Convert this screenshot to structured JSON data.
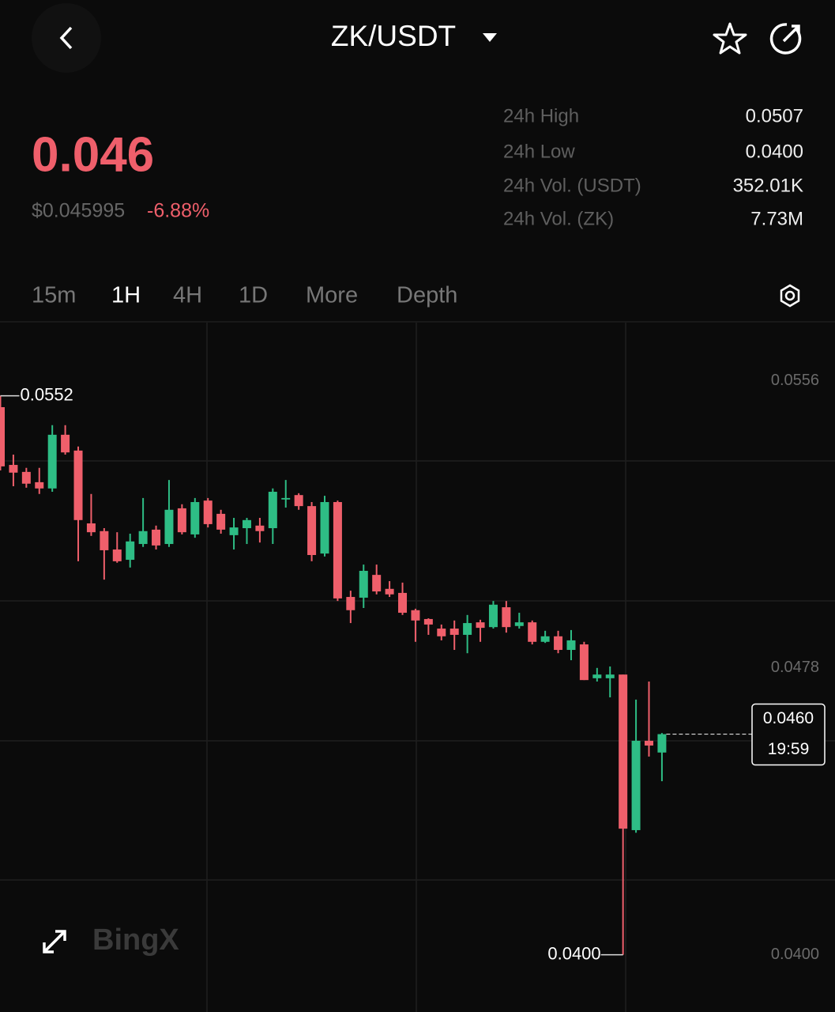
{
  "header": {
    "pair": "ZK/USDT"
  },
  "price": {
    "last": "0.046",
    "usd": "$0.045995",
    "change": "-6.88%"
  },
  "stats": [
    {
      "label": "24h High",
      "value": "0.0507"
    },
    {
      "label": "24h Low",
      "value": "0.0400"
    },
    {
      "label": "24h Vol. (USDT)",
      "value": "352.01K"
    },
    {
      "label": "24h Vol. (ZK)",
      "value": "7.73M"
    }
  ],
  "tabs": [
    "15m",
    "1H",
    "4H",
    "1D",
    "More",
    "Depth"
  ],
  "active_tab": "1H",
  "logo": "BingX",
  "chart_data": {
    "type": "candlestick",
    "up_color": "#2ebd85",
    "down_color": "#ef5f6b",
    "ylim": [
      0.03909,
      0.05719
    ],
    "yticks": [
      0.0556,
      0.0478,
      {
        "value": 0.04,
        "label": "0.0400"
      }
    ],
    "open": [
      0.05489,
      0.05332,
      0.05313,
      0.05285,
      0.05268,
      0.05414,
      0.05371,
      0.05173,
      0.05152,
      0.05102,
      0.05074,
      0.05117,
      0.05156,
      0.05117,
      0.05214,
      0.05143,
      0.05235,
      0.05199,
      0.05141,
      0.0516,
      0.05167,
      0.0516,
      0.05238,
      0.0525,
      0.0522,
      0.05091,
      0.05231,
      0.04973,
      0.04971,
      0.05033,
      0.04995,
      0.04984,
      0.04937,
      0.04913,
      0.04887,
      0.04887,
      0.0487,
      0.04904,
      0.04891,
      0.04945,
      0.04894,
      0.04904,
      0.04851,
      0.04866,
      0.04829,
      0.04844,
      0.04752,
      0.04752,
      0.04762,
      0.04339,
      0.04582,
      0.0455
    ],
    "high": [
      0.0552,
      0.0536,
      0.05324,
      0.05324,
      0.0544,
      0.0544,
      0.05382,
      0.05253,
      0.0516,
      0.05149,
      0.05145,
      0.05242,
      0.05167,
      0.05291,
      0.05225,
      0.05242,
      0.05242,
      0.0521,
      0.05188,
      0.05188,
      0.05188,
      0.05268,
      0.05291,
      0.05255,
      0.05231,
      0.05248,
      0.05235,
      0.0499,
      0.05061,
      0.05061,
      0.05016,
      0.05012,
      0.04941,
      0.04915,
      0.04898,
      0.04909,
      0.04924,
      0.04911,
      0.04962,
      0.04962,
      0.0493,
      0.04909,
      0.04881,
      0.04881,
      0.04883,
      0.04851,
      0.0478,
      0.04784,
      0.04762,
      0.04694,
      0.04743,
      0.04603
    ],
    "low": [
      0.05317,
      0.05274,
      0.0527,
      0.05253,
      0.05259,
      0.0536,
      0.0507,
      0.05139,
      0.0502,
      0.05066,
      0.05053,
      0.05109,
      0.05102,
      0.05109,
      0.05143,
      0.05134,
      0.05162,
      0.05145,
      0.05102,
      0.05117,
      0.05121,
      0.05117,
      0.05216,
      0.0521,
      0.0507,
      0.05083,
      0.04962,
      0.04902,
      0.04943,
      0.0498,
      0.04973,
      0.04924,
      0.04851,
      0.0487,
      0.04855,
      0.04829,
      0.0482,
      0.04851,
      0.04887,
      0.04876,
      0.04887,
      0.04844,
      0.04848,
      0.0482,
      0.04801,
      0.04747,
      0.04743,
      0.047,
      0.04,
      0.04332,
      0.04539,
      0.04472
    ],
    "close": [
      0.05328,
      0.05311,
      0.05281,
      0.05268,
      0.05414,
      0.05366,
      0.05182,
      0.05149,
      0.051,
      0.0507,
      0.05124,
      0.05152,
      0.05113,
      0.0521,
      0.05149,
      0.05231,
      0.05171,
      0.05156,
      0.05162,
      0.05182,
      0.05152,
      0.05259,
      0.05242,
      0.0522,
      0.05087,
      0.05231,
      0.04969,
      0.04937,
      0.05044,
      0.04988,
      0.0498,
      0.0493,
      0.04909,
      0.04898,
      0.04866,
      0.0487,
      0.04902,
      0.04889,
      0.04952,
      0.04891,
      0.04904,
      0.04851,
      0.04866,
      0.04829,
      0.04855,
      0.04747,
      0.04762,
      0.04762,
      0.04343,
      0.04582,
      0.04569,
      0.046
    ],
    "annotations": {
      "high": "0.0552",
      "low": "0.0400"
    },
    "last_price": {
      "value": 0.046,
      "label": "0.0460"
    },
    "countdown": "19:59"
  }
}
